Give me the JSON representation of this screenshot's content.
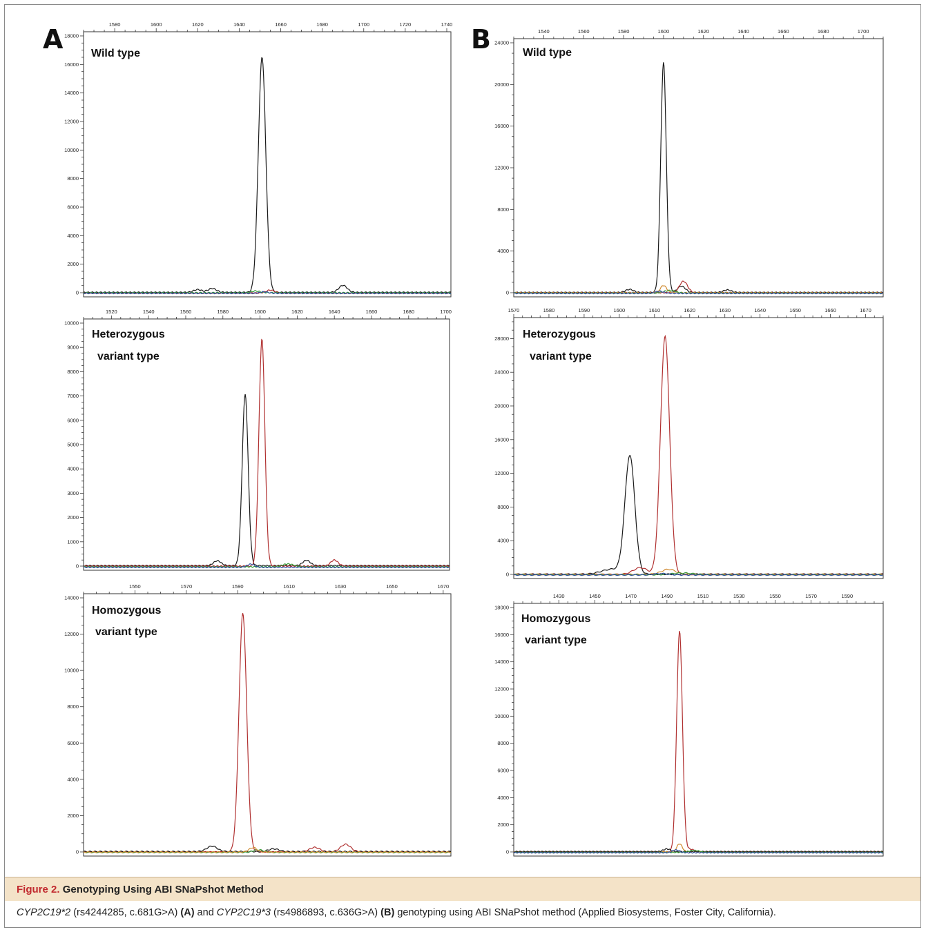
{
  "figure": {
    "panel_letters": [
      "A",
      "B"
    ],
    "caption_label": "Figure 2.",
    "caption_title": "Genotyping Using ABI SNaPshot Method",
    "caption_parts": {
      "gene2": "CYP2C19*2",
      "rs2": " (rs4244285, c.681G>A) ",
      "ref_a": "(A)",
      "and": " and ",
      "gene3": "CYP2C19*3",
      "rs3": " (rs4986893, c.636G>A) ",
      "ref_b": "(B)",
      "rest": " genotyping using ABI SNaPshot method (Applied Biosystems, Foster City, California)."
    }
  },
  "colors": {
    "black": "#1a1a1a",
    "red": "#b03030",
    "green": "#3a9a3a",
    "blue": "#3050a0",
    "orange": "#d08a30"
  },
  "chart_data": [
    {
      "type": "line",
      "panel": "A",
      "title": [
        "Wild type"
      ],
      "xlim": [
        1565,
        1742
      ],
      "xticks": [
        1580,
        1600,
        1620,
        1640,
        1660,
        1680,
        1700,
        1720,
        1740
      ],
      "ylim": [
        0,
        18000
      ],
      "yticks": [
        0,
        2000,
        4000,
        6000,
        8000,
        10000,
        12000,
        14000,
        16000,
        18000
      ],
      "series": [
        {
          "color": "black",
          "baseline": 20,
          "peaks": [
            [
              1651,
              16500,
              1.8
            ],
            [
              1620,
              200,
              2
            ],
            [
              1627,
              280,
              2
            ],
            [
              1690,
              500,
              2
            ]
          ]
        },
        {
          "color": "red",
          "baseline": -20,
          "peaks": [
            [
              1655,
              200,
              2
            ]
          ]
        },
        {
          "color": "green",
          "baseline": 0,
          "peaks": [
            [
              1648,
              120,
              2
            ]
          ]
        },
        {
          "color": "blue",
          "baseline": -40,
          "peaks": [
            [
              1652,
              100,
              2
            ]
          ]
        }
      ]
    },
    {
      "type": "line",
      "panel": "A",
      "title": [
        "Heterozygous",
        "variant type"
      ],
      "xlim": [
        1505,
        1702
      ],
      "xticks": [
        1520,
        1540,
        1560,
        1580,
        1600,
        1620,
        1640,
        1660,
        1680,
        1700
      ],
      "ylim": [
        0,
        10000
      ],
      "yticks": [
        0,
        1000,
        2000,
        3000,
        4000,
        5000,
        6000,
        7000,
        8000,
        9000,
        10000
      ],
      "series": [
        {
          "color": "black",
          "baseline": 20,
          "peaks": [
            [
              1592,
              7050,
              1.6
            ],
            [
              1577,
              200,
              2
            ],
            [
              1625,
              220,
              2
            ]
          ]
        },
        {
          "color": "red",
          "baseline": 0,
          "peaks": [
            [
              1601,
              9350,
              1.6
            ],
            [
              1640,
              250,
              2
            ]
          ]
        },
        {
          "color": "green",
          "baseline": -30,
          "peaks": [
            [
              1615,
              120,
              3
            ]
          ]
        },
        {
          "color": "blue",
          "baseline": -50,
          "peaks": [
            [
              1595,
              130,
              2
            ]
          ]
        }
      ]
    },
    {
      "type": "line",
      "panel": "A",
      "title": [
        "Homozygous",
        "variant type"
      ],
      "xlim": [
        1530,
        1673
      ],
      "xticks": [
        1550,
        1570,
        1590,
        1610,
        1630,
        1650,
        1670
      ],
      "ylim": [
        0,
        14000
      ],
      "yticks": [
        0,
        2000,
        4000,
        6000,
        8000,
        10000,
        12000,
        14000
      ],
      "series": [
        {
          "color": "red",
          "baseline": 0,
          "peaks": [
            [
              1592,
              13150,
              1.5
            ],
            [
              1620,
              250,
              2
            ],
            [
              1632,
              420,
              2
            ]
          ]
        },
        {
          "color": "black",
          "baseline": 20,
          "peaks": [
            [
              1580,
              300,
              2
            ],
            [
              1604,
              150,
              2
            ]
          ]
        },
        {
          "color": "green",
          "baseline": -30,
          "peaks": [
            [
              1598,
              150,
              2
            ]
          ]
        },
        {
          "color": "orange",
          "baseline": -10,
          "peaks": [
            [
              1596,
              250,
              1.5
            ]
          ]
        }
      ]
    },
    {
      "type": "line",
      "panel": "B",
      "title": [
        "Wild type"
      ],
      "xlim": [
        1525,
        1710
      ],
      "xticks": [
        1540,
        1560,
        1580,
        1600,
        1620,
        1640,
        1660,
        1680,
        1700
      ],
      "ylim": [
        0,
        24000
      ],
      "yticks": [
        0,
        4000,
        8000,
        12000,
        16000,
        20000,
        24000
      ],
      "series": [
        {
          "color": "black",
          "baseline": 20,
          "peaks": [
            [
              1600,
              22100,
              1.4
            ],
            [
              1583,
              300,
              2
            ],
            [
              1609,
              600,
              2
            ],
            [
              1632,
              250,
              2
            ]
          ]
        },
        {
          "color": "red",
          "baseline": 0,
          "peaks": [
            [
              1610,
              1100,
              2
            ]
          ]
        },
        {
          "color": "orange",
          "baseline": 0,
          "peaks": [
            [
              1600,
              700,
              1.5
            ]
          ]
        },
        {
          "color": "green",
          "baseline": -40,
          "peaks": [
            [
              1603,
              250,
              3
            ]
          ]
        },
        {
          "color": "blue",
          "baseline": -60,
          "peaks": [
            [
              1598,
              200,
              2
            ]
          ]
        }
      ]
    },
    {
      "type": "line",
      "panel": "B",
      "title": [
        "Heterozygous",
        "variant type"
      ],
      "xlim": [
        1570,
        1675
      ],
      "xticks": [
        1570,
        1580,
        1590,
        1600,
        1610,
        1620,
        1630,
        1640,
        1650,
        1660,
        1670
      ],
      "ylim": [
        0,
        30000
      ],
      "yticks": [
        0,
        4000,
        8000,
        12000,
        16000,
        20000,
        24000,
        28000
      ],
      "series": [
        {
          "color": "black",
          "baseline": 20,
          "peaks": [
            [
              1603,
              14000,
              1.4
            ],
            [
              1598,
              600,
              3
            ]
          ]
        },
        {
          "color": "red",
          "baseline": 0,
          "peaks": [
            [
              1613,
              28300,
              1.3
            ],
            [
              1606,
              800,
              2
            ]
          ]
        },
        {
          "color": "orange",
          "baseline": 0,
          "peaks": [
            [
              1614,
              600,
              2
            ]
          ]
        },
        {
          "color": "green",
          "baseline": -40,
          "peaks": [
            [
              1618,
              200,
              3
            ]
          ]
        },
        {
          "color": "blue",
          "baseline": -60,
          "peaks": [
            [
              1612,
              150,
              2
            ]
          ]
        }
      ]
    },
    {
      "type": "line",
      "panel": "B",
      "title": [
        "Homozygous",
        "variant type"
      ],
      "xlim": [
        1405,
        1610
      ],
      "xticks": [
        1430,
        1450,
        1470,
        1490,
        1510,
        1530,
        1550,
        1570,
        1590
      ],
      "ylim": [
        0,
        18000
      ],
      "yticks": [
        0,
        2000,
        4000,
        6000,
        8000,
        10000,
        12000,
        14000,
        16000,
        18000
      ],
      "series": [
        {
          "color": "red",
          "baseline": 0,
          "peaks": [
            [
              1497,
              16300,
              1.6
            ],
            [
              1503,
              200,
              2
            ]
          ]
        },
        {
          "color": "orange",
          "baseline": 0,
          "peaks": [
            [
              1497,
              600,
              1.5
            ]
          ]
        },
        {
          "color": "black",
          "baseline": 20,
          "peaks": [
            [
              1490,
              200,
              2
            ]
          ]
        },
        {
          "color": "green",
          "baseline": -40,
          "peaks": [
            [
              1505,
              150,
              3
            ]
          ]
        },
        {
          "color": "blue",
          "baseline": -60,
          "peaks": [
            [
              1495,
              200,
              2
            ]
          ]
        }
      ]
    }
  ]
}
